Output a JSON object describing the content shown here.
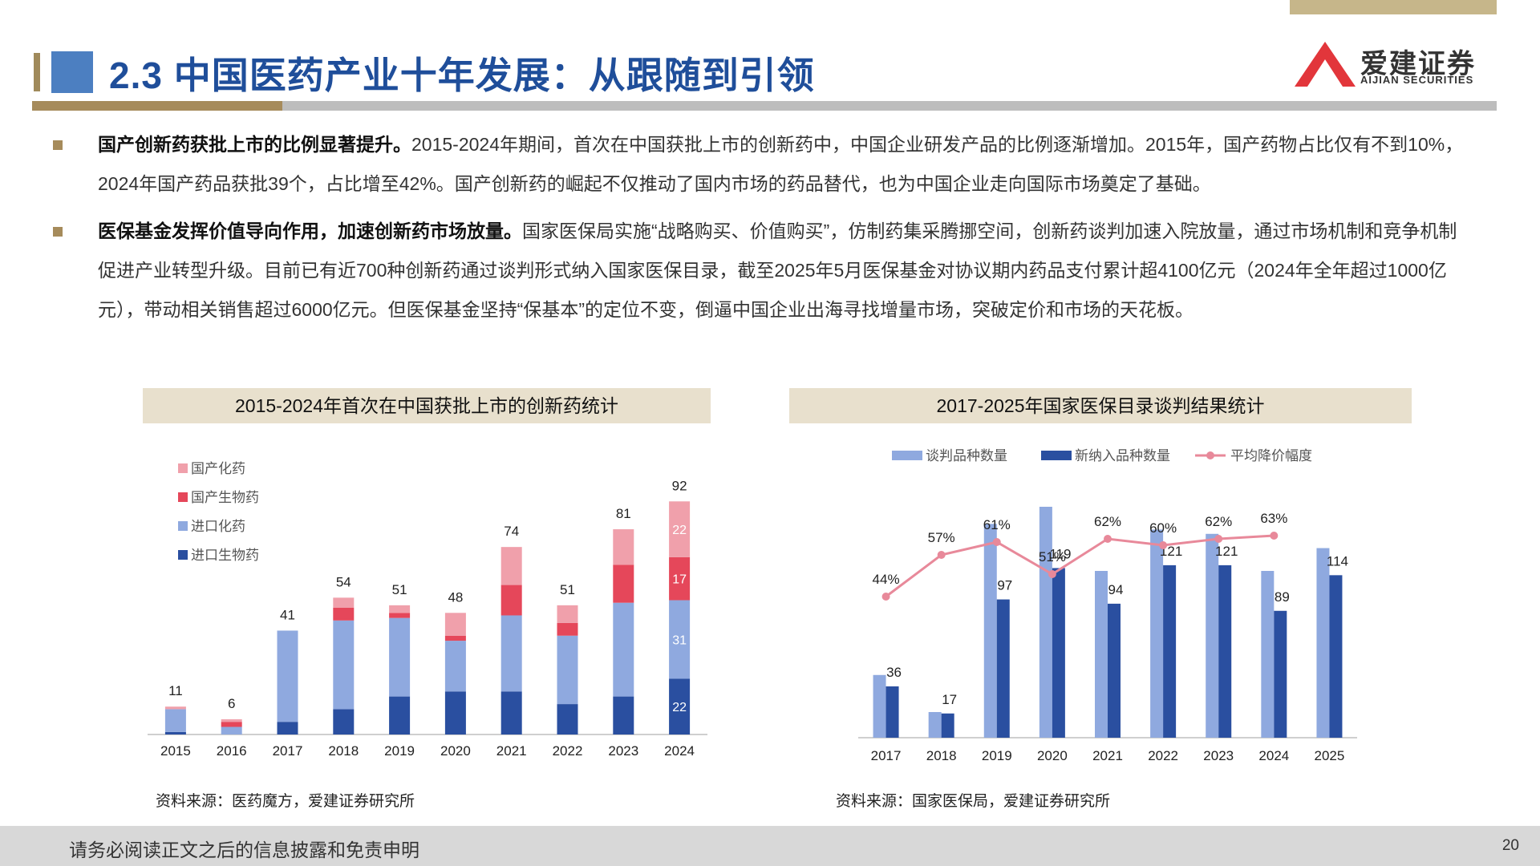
{
  "header": {
    "title": "2.3 中国医药产业十年发展：从跟随到引领",
    "logo_cn": "爱建证券",
    "logo_en": "AIJIAN SECURITIES"
  },
  "bullets": [
    {
      "bold": "国产创新药获批上市的比例显著提升。",
      "text": "2015-2024年期间，首次在中国获批上市的创新药中，中国企业研发产品的比例逐渐增加。2015年，国产药物占比仅有不到10%，2024年国产药品获批39个，占比增至42%。国产创新药的崛起不仅推动了国内市场的药品替代，也为中国企业走向国际市场奠定了基础。"
    },
    {
      "bold": "医保基金发挥价值导向作用，加速创新药市场放量。",
      "text": "国家医保局实施“战略购买、价值购买”，仿制药集采腾挪空间，创新药谈判加速入院放量，通过市场机制和竞争机制促进产业转型升级。目前已有近700种创新药通过谈判形式纳入国家医保目录，截至2025年5月医保基金对协议期内药品支付累计超4100亿元（2024年全年超过1000亿元），带动相关销售超过6000亿元。但医保基金坚持“保基本”的定位不变，倒逼中国企业出海寻找增量市场，突破定价和市场的天花板。"
    }
  ],
  "left_chart": {
    "title": "2015-2024年首次在中国获批上市的创新药统计",
    "source": "资料来源：医药魔方，爱建证券研究所"
  },
  "right_chart": {
    "title": "2017-2025年国家医保目录谈判结果统计",
    "source": "资料来源：国家医保局，爱建证券研究所"
  },
  "footer": {
    "disclaimer": "请务必阅读正文之后的信息披露和免责申明",
    "page": "20"
  },
  "chart_data": [
    {
      "type": "bar",
      "stacked": true,
      "title": "2015-2024年首次在中国获批上市的创新药统计",
      "categories": [
        "2015",
        "2016",
        "2017",
        "2018",
        "2019",
        "2020",
        "2021",
        "2022",
        "2023",
        "2024"
      ],
      "series": [
        {
          "name": "进口生物药",
          "color": "#2A4FA0",
          "values": [
            1,
            0,
            5,
            10,
            15,
            17,
            17,
            12,
            15,
            22
          ]
        },
        {
          "name": "进口化药",
          "color": "#8FA9DF",
          "values": [
            9,
            3,
            36,
            35,
            31,
            20,
            30,
            27,
            37,
            31
          ]
        },
        {
          "name": "国产生物药",
          "color": "#E5475A",
          "values": [
            0,
            2,
            0,
            5,
            2,
            2,
            12,
            5,
            15,
            17
          ]
        },
        {
          "name": "国产化药",
          "color": "#F0A0AB",
          "values": [
            1,
            1,
            0,
            4,
            3,
            9,
            15,
            7,
            14,
            22
          ]
        }
      ],
      "totals": [
        11,
        6,
        41,
        54,
        51,
        48,
        74,
        51,
        81,
        92
      ],
      "segment_labels_2024": [
        22,
        31,
        17,
        22
      ],
      "legend_position": "top-left",
      "ylim": [
        0,
        100
      ],
      "grid": false
    },
    {
      "type": "bar",
      "title": "2017-2025年国家医保目录谈判结果统计",
      "categories": [
        "2017",
        "2018",
        "2019",
        "2020",
        "2021",
        "2022",
        "2023",
        "2024",
        "2025"
      ],
      "series": [
        {
          "name": "谈判品种数量",
          "type": "bar",
          "color": "#8FA9DF",
          "values": [
            44,
            18,
            150,
            162,
            117,
            146,
            143,
            117,
            133
          ]
        },
        {
          "name": "新纳入品种数量",
          "type": "bar",
          "color": "#2A4FA0",
          "values": [
            36,
            17,
            97,
            119,
            94,
            121,
            121,
            89,
            114
          ],
          "labeled": true
        },
        {
          "name": "平均降价幅度",
          "type": "line",
          "color": "#E8899A",
          "values": [
            44,
            57,
            61,
            51,
            62,
            60,
            62,
            63,
            null
          ],
          "labels": [
            "44%",
            "57%",
            "61%",
            "51%",
            "62%",
            "60%",
            "62%",
            "63%",
            ""
          ],
          "unit": "%"
        }
      ],
      "bar_ylim": [
        0,
        180
      ],
      "line_ylim": [
        0,
        80
      ],
      "legend_position": "top",
      "grid": false
    }
  ]
}
